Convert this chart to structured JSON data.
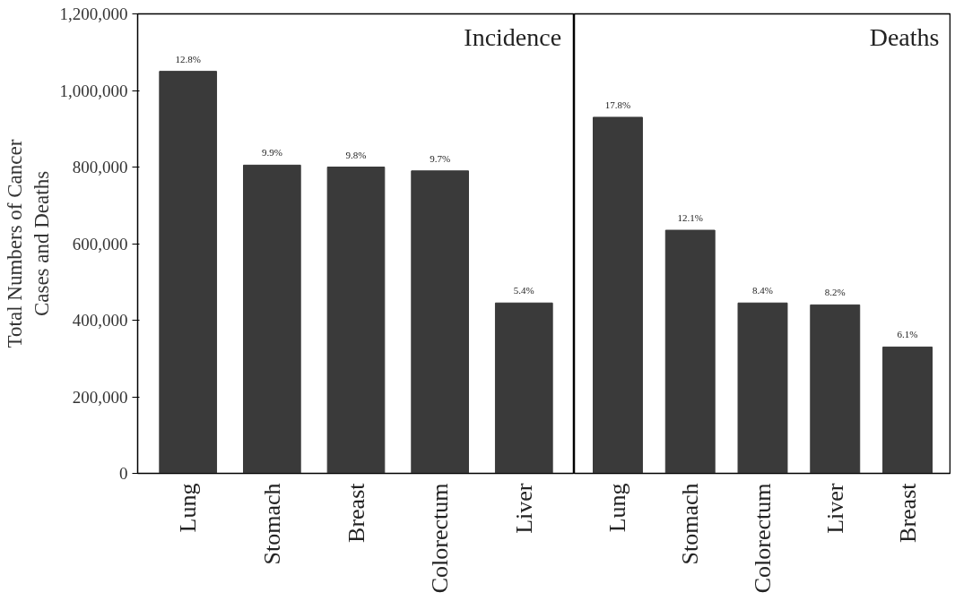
{
  "chart_data": [
    {
      "type": "bar",
      "title": "Incidence",
      "ylabel": "Total Numbers of Cancer\nCases and Deaths",
      "categories": [
        "Lung",
        "Stomach",
        "Breast",
        "Colorectum",
        "Liver"
      ],
      "values": [
        1050000,
        805000,
        800000,
        790000,
        445000
      ],
      "annotations": [
        {
          "text": "12.8%",
          "x": "Lung",
          "y": 1050000
        },
        {
          "text": "9.9%",
          "x": "Stomach",
          "y": 805000
        },
        {
          "text": "9.8%",
          "x": "Breast",
          "y": 800000
        },
        {
          "text": "9.7%",
          "x": "Colorectum",
          "y": 790000
        },
        {
          "text": "5.4%",
          "x": "Liver",
          "y": 445000
        }
      ],
      "color": "#3a3a3a",
      "ylim": [
        0,
        1200000
      ],
      "yticks": [
        {
          "value": 0,
          "label": "0"
        },
        {
          "value": 200000,
          "label": "200,000"
        },
        {
          "value": 400000,
          "label": "400,000"
        },
        {
          "value": 600000,
          "label": "600,000"
        },
        {
          "value": 800000,
          "label": "800,000"
        },
        {
          "value": 1000000,
          "label": "1,000,000"
        },
        {
          "value": 1200000,
          "label": "1,200,000"
        }
      ],
      "grid": false
    },
    {
      "type": "bar",
      "title": "Deaths",
      "categories": [
        "Lung",
        "Stomach",
        "Colorectum",
        "Liver",
        "Breast"
      ],
      "values": [
        930000,
        635000,
        445000,
        440000,
        330000
      ],
      "annotations": [
        {
          "text": "17.8%",
          "x": "Lung",
          "y": 930000
        },
        {
          "text": "12.1%",
          "x": "Stomach",
          "y": 635000
        },
        {
          "text": "8.4%",
          "x": "Colorectum",
          "y": 445000
        },
        {
          "text": "8.2%",
          "x": "Liver",
          "y": 440000
        },
        {
          "text": "6.1%",
          "x": "Breast",
          "y": 330000
        }
      ],
      "color": "#3a3a3a",
      "ylim": [
        0,
        1200000
      ],
      "tick_labels": "x",
      "grid": false
    }
  ]
}
